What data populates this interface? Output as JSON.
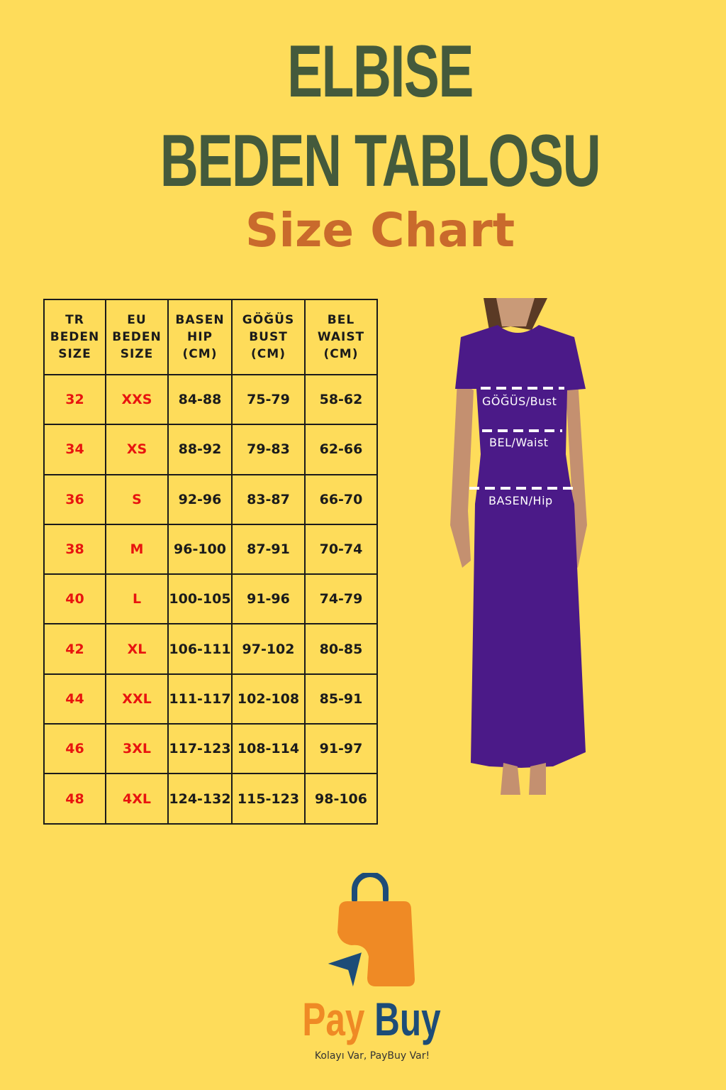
{
  "title": {
    "line1": "ELBISE",
    "line2": "BEDEN TABLOSU",
    "line3": "Size Chart"
  },
  "table": {
    "headers": [
      "TR\nBEDEN\nSIZE",
      "EU\nBEDEN\nSIZE",
      "BASEN\nHIP\n(CM)",
      "GÖĞÜS\nBUST\n(CM)",
      "BEL\nWAIST\n(CM)"
    ],
    "rows": [
      [
        "32",
        "XXS",
        "84-88",
        "75-79",
        "58-62"
      ],
      [
        "34",
        "XS",
        "88-92",
        "79-83",
        "62-66"
      ],
      [
        "36",
        "S",
        "92-96",
        "83-87",
        "66-70"
      ],
      [
        "38",
        "M",
        "96-100",
        "87-91",
        "70-74"
      ],
      [
        "40",
        "L",
        "100-105",
        "91-96",
        "74-79"
      ],
      [
        "42",
        "XL",
        "106-111",
        "97-102",
        "80-85"
      ],
      [
        "44",
        "XXL",
        "111-117",
        "102-108",
        "85-91"
      ],
      [
        "46",
        "3XL",
        "117-123",
        "108-114",
        "91-97"
      ],
      [
        "48",
        "4XL",
        "124-132",
        "115-123",
        "98-106"
      ]
    ]
  },
  "figure": {
    "bust_label": "GÖĞÜS/Bust",
    "waist_label": "BEL/Waist",
    "hip_label": "BASEN/Hip",
    "dress_color": "#4b1a88"
  },
  "logo": {
    "word1": "Pay",
    "word2": "Buy",
    "tagline": "Kolayı Var, PayBuy Var!",
    "orange": "#ef8a25",
    "blue": "#1d4c78"
  }
}
